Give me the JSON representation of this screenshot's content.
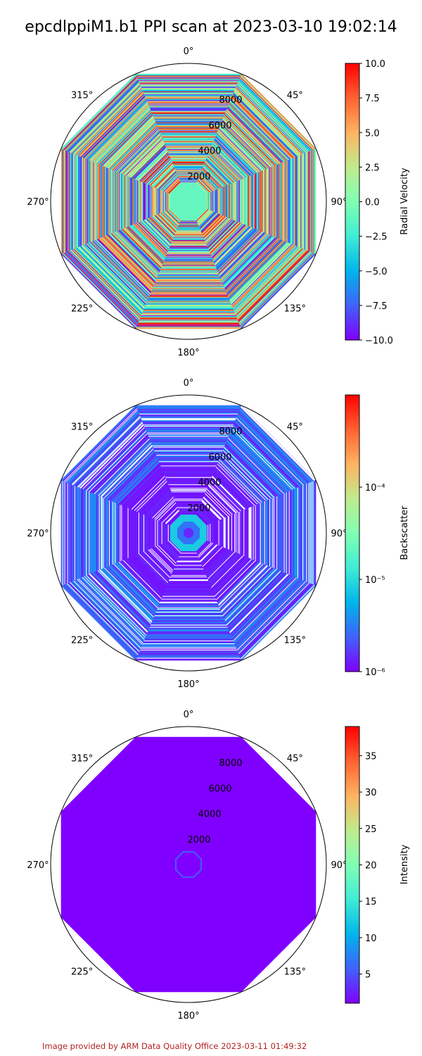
{
  "title": "epcdlppiM1.b1 PPI scan at 2023-03-10 19:02:14",
  "footer": "Image provided by ARM Data Quality Office 2023-03-11 01:49:32",
  "chart_data": [
    {
      "type": "heatmap",
      "projection": "polar",
      "title": "",
      "theta_ticks": [
        "0°",
        "45°",
        "90°",
        "135°",
        "180°",
        "225°",
        "270°",
        "315°"
      ],
      "r_ticks": [
        "2000",
        "4000",
        "6000",
        "8000"
      ],
      "r_max": 10000,
      "colormap": "rainbow",
      "colorbar": {
        "label": "Radial Velocity",
        "scale": "linear",
        "min": -10.0,
        "max": 10.0,
        "ticks": [
          "10.0",
          "7.5",
          "5.0",
          "2.5",
          "0.0",
          "−2.5",
          "−5.0",
          "−7.5",
          "−10.0"
        ]
      }
    },
    {
      "type": "heatmap",
      "projection": "polar",
      "title": "",
      "theta_ticks": [
        "0°",
        "45°",
        "90°",
        "135°",
        "180°",
        "225°",
        "270°",
        "315°"
      ],
      "r_ticks": [
        "2000",
        "4000",
        "6000",
        "8000"
      ],
      "r_max": 10000,
      "colormap": "rainbow",
      "colorbar": {
        "label": "Backscatter",
        "scale": "log",
        "min": 1e-06,
        "max": 0.001,
        "ticks": [
          "10⁻⁴",
          "10⁻⁵",
          "10⁻⁶"
        ]
      }
    },
    {
      "type": "heatmap",
      "projection": "polar",
      "title": "",
      "theta_ticks": [
        "0°",
        "45°",
        "90°",
        "135°",
        "180°",
        "225°",
        "270°",
        "315°"
      ],
      "r_ticks": [
        "2000",
        "4000",
        "6000",
        "8000"
      ],
      "r_max": 10000,
      "colormap": "rainbow",
      "colorbar": {
        "label": "Intensity",
        "scale": "linear",
        "min": 1,
        "max": 39,
        "ticks": [
          "35",
          "30",
          "25",
          "20",
          "15",
          "10",
          "5"
        ]
      }
    }
  ]
}
